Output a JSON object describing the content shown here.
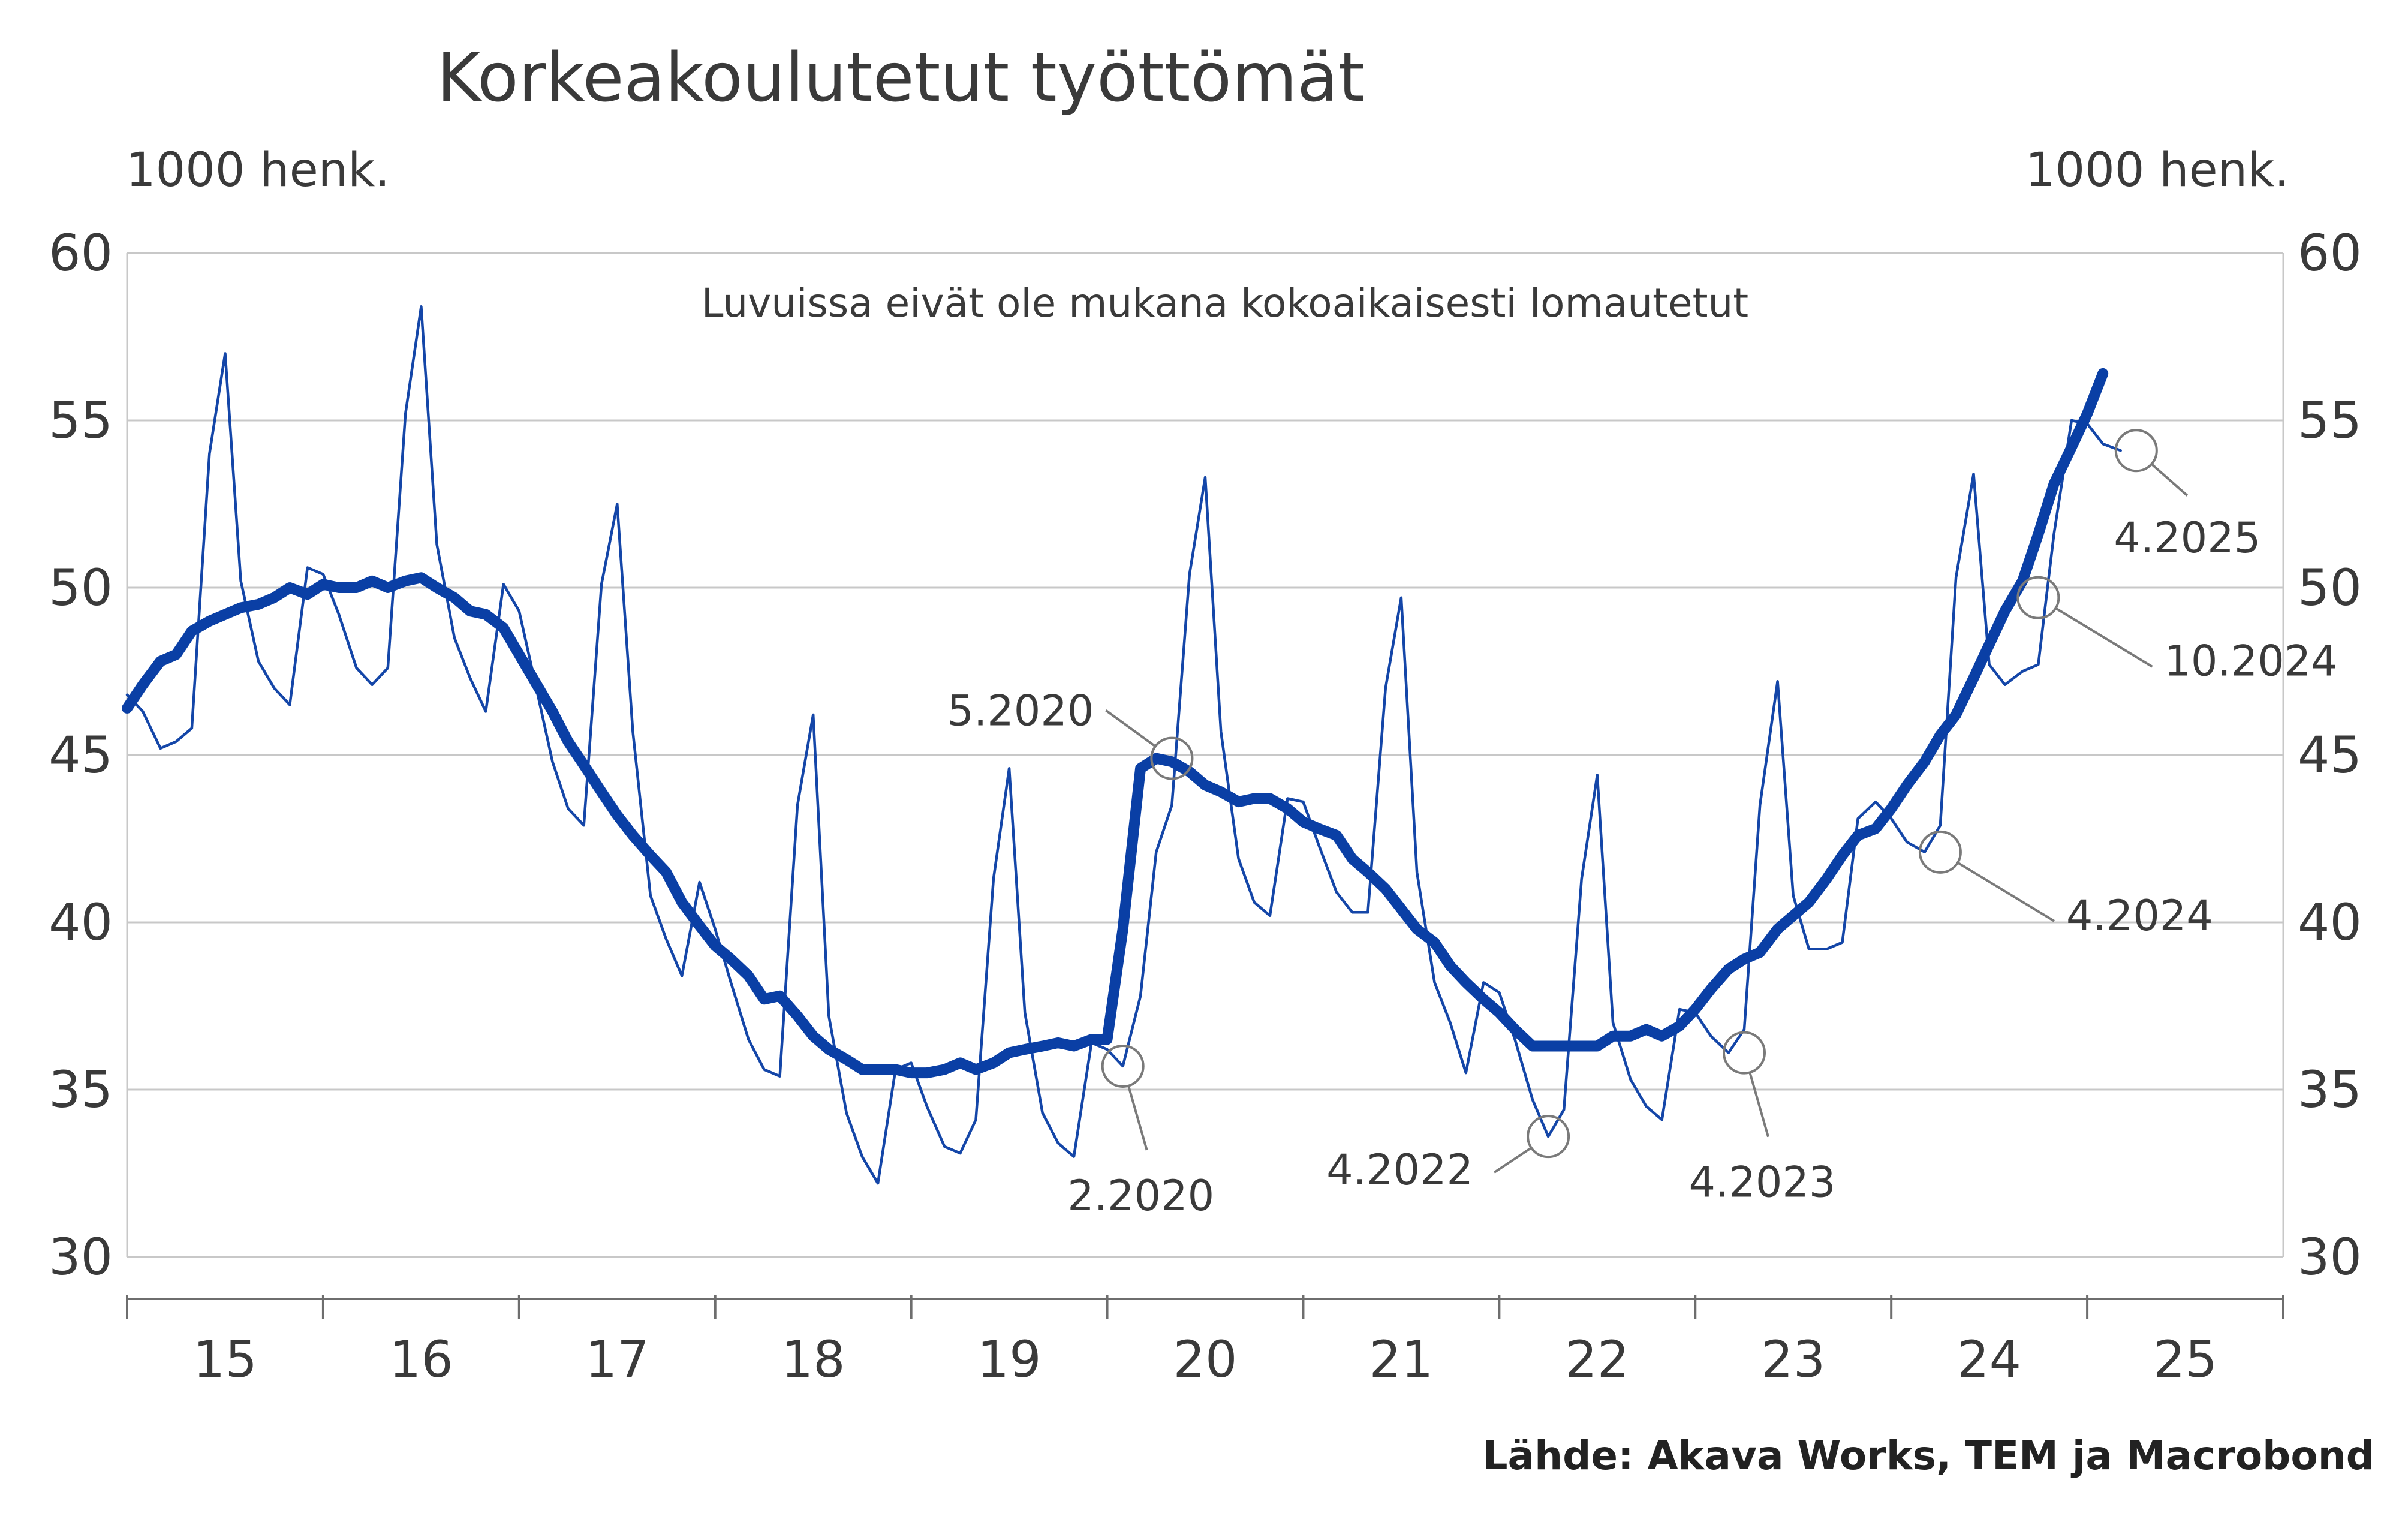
{
  "chart_data": {
    "type": "line",
    "title": "Korkeakoulutetut työttömät",
    "ylabel_left": "1000 henk.",
    "ylabel_right": "1000 henk.",
    "note": "Luvuissa eivät ole mukana kokoaikaisesti lomautetut",
    "source": "Lähde: Akava Works, TEM ja Macrobond",
    "x_tick_labels": [
      "15",
      "16",
      "17",
      "18",
      "19",
      "20",
      "21",
      "22",
      "23",
      "24",
      "25"
    ],
    "x_range": [
      2015.0,
      2026.0
    ],
    "ylim": [
      30,
      60
    ],
    "y_ticks": [
      30,
      35,
      40,
      45,
      50,
      55,
      60
    ],
    "grid": true,
    "series": [
      {
        "color": "#1446a8",
        "line": "thin",
        "points": [
          [
            2015.0,
            46.8
          ],
          [
            2015.08,
            46.3
          ],
          [
            2015.17,
            45.2
          ],
          [
            2015.25,
            45.4
          ],
          [
            2015.33,
            45.8
          ],
          [
            2015.42,
            54.0
          ],
          [
            2015.5,
            57.0
          ],
          [
            2015.58,
            50.2
          ],
          [
            2015.67,
            47.8
          ],
          [
            2015.75,
            47.0
          ],
          [
            2015.83,
            46.5
          ],
          [
            2015.92,
            50.6
          ],
          [
            2016.0,
            50.4
          ],
          [
            2016.08,
            49.2
          ],
          [
            2016.17,
            47.6
          ],
          [
            2016.25,
            47.1
          ],
          [
            2016.33,
            47.6
          ],
          [
            2016.42,
            55.2
          ],
          [
            2016.5,
            58.4
          ],
          [
            2016.58,
            51.3
          ],
          [
            2016.67,
            48.5
          ],
          [
            2016.75,
            47.3
          ],
          [
            2016.83,
            46.3
          ],
          [
            2016.92,
            50.1
          ],
          [
            2017.0,
            49.3
          ],
          [
            2017.08,
            47.2
          ],
          [
            2017.17,
            44.8
          ],
          [
            2017.25,
            43.4
          ],
          [
            2017.33,
            42.9
          ],
          [
            2017.42,
            50.1
          ],
          [
            2017.5,
            52.5
          ],
          [
            2017.58,
            45.7
          ],
          [
            2017.67,
            40.8
          ],
          [
            2017.75,
            39.5
          ],
          [
            2017.83,
            38.4
          ],
          [
            2017.92,
            41.2
          ],
          [
            2018.0,
            39.8
          ],
          [
            2018.08,
            38.2
          ],
          [
            2018.17,
            36.5
          ],
          [
            2018.25,
            35.6
          ],
          [
            2018.33,
            35.4
          ],
          [
            2018.42,
            43.5
          ],
          [
            2018.5,
            46.2
          ],
          [
            2018.58,
            37.2
          ],
          [
            2018.67,
            34.3
          ],
          [
            2018.75,
            33.0
          ],
          [
            2018.83,
            32.2
          ],
          [
            2018.92,
            35.6
          ],
          [
            2019.0,
            35.8
          ],
          [
            2019.08,
            34.5
          ],
          [
            2019.17,
            33.3
          ],
          [
            2019.25,
            33.1
          ],
          [
            2019.33,
            34.1
          ],
          [
            2019.42,
            41.3
          ],
          [
            2019.5,
            44.6
          ],
          [
            2019.58,
            37.3
          ],
          [
            2019.67,
            34.3
          ],
          [
            2019.75,
            33.4
          ],
          [
            2019.83,
            33.0
          ],
          [
            2019.92,
            36.4
          ],
          [
            2020.0,
            36.2
          ],
          [
            2020.08,
            35.7
          ],
          [
            2020.17,
            37.8
          ],
          [
            2020.25,
            42.1
          ],
          [
            2020.33,
            43.5
          ],
          [
            2020.42,
            50.4
          ],
          [
            2020.5,
            53.3
          ],
          [
            2020.58,
            45.7
          ],
          [
            2020.67,
            41.9
          ],
          [
            2020.75,
            40.6
          ],
          [
            2020.83,
            40.2
          ],
          [
            2020.92,
            43.7
          ],
          [
            2021.0,
            43.6
          ],
          [
            2021.08,
            42.3
          ],
          [
            2021.17,
            40.9
          ],
          [
            2021.25,
            40.3
          ],
          [
            2021.33,
            40.3
          ],
          [
            2021.42,
            47.0
          ],
          [
            2021.5,
            49.7
          ],
          [
            2021.58,
            41.5
          ],
          [
            2021.67,
            38.2
          ],
          [
            2021.75,
            37.0
          ],
          [
            2021.83,
            35.5
          ],
          [
            2021.92,
            38.2
          ],
          [
            2022.0,
            37.9
          ],
          [
            2022.08,
            36.5
          ],
          [
            2022.17,
            34.7
          ],
          [
            2022.25,
            33.6
          ],
          [
            2022.33,
            34.4
          ],
          [
            2022.42,
            41.3
          ],
          [
            2022.5,
            44.4
          ],
          [
            2022.58,
            37.0
          ],
          [
            2022.67,
            35.3
          ],
          [
            2022.75,
            34.5
          ],
          [
            2022.83,
            34.1
          ],
          [
            2022.92,
            37.4
          ],
          [
            2023.0,
            37.3
          ],
          [
            2023.08,
            36.6
          ],
          [
            2023.17,
            36.1
          ],
          [
            2023.25,
            36.8
          ],
          [
            2023.33,
            43.5
          ],
          [
            2023.42,
            47.2
          ],
          [
            2023.5,
            40.8
          ],
          [
            2023.58,
            39.2
          ],
          [
            2023.67,
            39.2
          ],
          [
            2023.75,
            39.4
          ],
          [
            2023.83,
            43.1
          ],
          [
            2023.92,
            43.6
          ],
          [
            2024.0,
            43.1
          ],
          [
            2024.08,
            42.4
          ],
          [
            2024.17,
            42.1
          ],
          [
            2024.25,
            42.9
          ],
          [
            2024.33,
            50.3
          ],
          [
            2024.42,
            53.4
          ],
          [
            2024.5,
            47.7
          ],
          [
            2024.58,
            47.1
          ],
          [
            2024.67,
            47.5
          ],
          [
            2024.75,
            47.7
          ],
          [
            2024.83,
            51.6
          ],
          [
            2024.92,
            55.0
          ],
          [
            2025.0,
            54.9
          ],
          [
            2025.08,
            54.3
          ],
          [
            2025.17,
            54.1
          ]
        ]
      },
      {
        "color": "#0a3fa5",
        "line": "thick",
        "points": [
          [
            2015.0,
            46.4
          ],
          [
            2015.08,
            47.1
          ],
          [
            2015.17,
            47.8
          ],
          [
            2015.25,
            48.0
          ],
          [
            2015.33,
            48.7
          ],
          [
            2015.42,
            49.0
          ],
          [
            2015.5,
            49.2
          ],
          [
            2015.58,
            49.4
          ],
          [
            2015.67,
            49.5
          ],
          [
            2015.75,
            49.7
          ],
          [
            2015.83,
            50.0
          ],
          [
            2015.92,
            49.8
          ],
          [
            2016.0,
            50.1
          ],
          [
            2016.08,
            50.0
          ],
          [
            2016.17,
            50.0
          ],
          [
            2016.25,
            50.2
          ],
          [
            2016.33,
            50.0
          ],
          [
            2016.42,
            50.2
          ],
          [
            2016.5,
            50.3
          ],
          [
            2016.58,
            50.0
          ],
          [
            2016.67,
            49.7
          ],
          [
            2016.75,
            49.3
          ],
          [
            2016.83,
            49.2
          ],
          [
            2016.92,
            48.8
          ],
          [
            2017.0,
            48.0
          ],
          [
            2017.08,
            47.2
          ],
          [
            2017.17,
            46.3
          ],
          [
            2017.25,
            45.4
          ],
          [
            2017.33,
            44.7
          ],
          [
            2017.42,
            43.9
          ],
          [
            2017.5,
            43.2
          ],
          [
            2017.58,
            42.6
          ],
          [
            2017.67,
            42.0
          ],
          [
            2017.75,
            41.5
          ],
          [
            2017.83,
            40.6
          ],
          [
            2017.92,
            39.9
          ],
          [
            2018.0,
            39.3
          ],
          [
            2018.08,
            38.9
          ],
          [
            2018.17,
            38.4
          ],
          [
            2018.25,
            37.7
          ],
          [
            2018.33,
            37.8
          ],
          [
            2018.42,
            37.2
          ],
          [
            2018.5,
            36.6
          ],
          [
            2018.58,
            36.2
          ],
          [
            2018.67,
            35.9
          ],
          [
            2018.75,
            35.6
          ],
          [
            2018.83,
            35.6
          ],
          [
            2018.92,
            35.6
          ],
          [
            2019.0,
            35.5
          ],
          [
            2019.08,
            35.5
          ],
          [
            2019.17,
            35.6
          ],
          [
            2019.25,
            35.8
          ],
          [
            2019.33,
            35.6
          ],
          [
            2019.42,
            35.8
          ],
          [
            2019.5,
            36.1
          ],
          [
            2019.58,
            36.2
          ],
          [
            2019.67,
            36.3
          ],
          [
            2019.75,
            36.4
          ],
          [
            2019.83,
            36.3
          ],
          [
            2019.92,
            36.5
          ],
          [
            2020.0,
            36.5
          ],
          [
            2020.08,
            39.8
          ],
          [
            2020.17,
            44.6
          ],
          [
            2020.25,
            44.9
          ],
          [
            2020.33,
            44.8
          ],
          [
            2020.42,
            44.5
          ],
          [
            2020.5,
            44.1
          ],
          [
            2020.58,
            43.9
          ],
          [
            2020.67,
            43.6
          ],
          [
            2020.75,
            43.7
          ],
          [
            2020.83,
            43.7
          ],
          [
            2020.92,
            43.4
          ],
          [
            2021.0,
            43.0
          ],
          [
            2021.08,
            42.8
          ],
          [
            2021.17,
            42.6
          ],
          [
            2021.25,
            41.9
          ],
          [
            2021.33,
            41.5
          ],
          [
            2021.42,
            41.0
          ],
          [
            2021.5,
            40.4
          ],
          [
            2021.58,
            39.8
          ],
          [
            2021.67,
            39.4
          ],
          [
            2021.75,
            38.7
          ],
          [
            2021.83,
            38.2
          ],
          [
            2021.92,
            37.7
          ],
          [
            2022.0,
            37.3
          ],
          [
            2022.08,
            36.8
          ],
          [
            2022.17,
            36.3
          ],
          [
            2022.25,
            36.3
          ],
          [
            2022.33,
            36.3
          ],
          [
            2022.42,
            36.3
          ],
          [
            2022.5,
            36.3
          ],
          [
            2022.58,
            36.6
          ],
          [
            2022.67,
            36.6
          ],
          [
            2022.75,
            36.8
          ],
          [
            2022.83,
            36.6
          ],
          [
            2022.92,
            36.9
          ],
          [
            2023.0,
            37.4
          ],
          [
            2023.08,
            38.0
          ],
          [
            2023.17,
            38.6
          ],
          [
            2023.25,
            38.9
          ],
          [
            2023.33,
            39.1
          ],
          [
            2023.42,
            39.8
          ],
          [
            2023.5,
            40.2
          ],
          [
            2023.58,
            40.6
          ],
          [
            2023.67,
            41.3
          ],
          [
            2023.75,
            42.0
          ],
          [
            2023.83,
            42.6
          ],
          [
            2023.92,
            42.8
          ],
          [
            2024.0,
            43.4
          ],
          [
            2024.08,
            44.1
          ],
          [
            2024.17,
            44.8
          ],
          [
            2024.25,
            45.6
          ],
          [
            2024.33,
            46.2
          ],
          [
            2024.42,
            47.3
          ],
          [
            2024.5,
            48.3
          ],
          [
            2024.58,
            49.3
          ],
          [
            2024.67,
            50.2
          ],
          [
            2024.75,
            51.6
          ],
          [
            2024.83,
            53.1
          ],
          [
            2024.92,
            54.2
          ],
          [
            2025.0,
            55.2
          ],
          [
            2025.08,
            56.4
          ]
        ]
      }
    ],
    "annotations": [
      {
        "label": "5.2020",
        "x": 2020.33,
        "y": 44.9,
        "side": "left-up"
      },
      {
        "label": "2.2020",
        "x": 2020.08,
        "y": 35.7,
        "side": "down"
      },
      {
        "label": "4.2022",
        "x": 2022.25,
        "y": 33.6,
        "side": "left-down"
      },
      {
        "label": "4.2023",
        "x": 2023.25,
        "y": 36.1,
        "side": "down"
      },
      {
        "label": "4.2024",
        "x": 2024.25,
        "y": 42.1,
        "side": "right-down"
      },
      {
        "label": "10.2024",
        "x": 2024.75,
        "y": 49.7,
        "side": "right-down"
      },
      {
        "label": "4.2025",
        "x": 2025.25,
        "y": 54.1,
        "side": "down-right"
      }
    ]
  }
}
